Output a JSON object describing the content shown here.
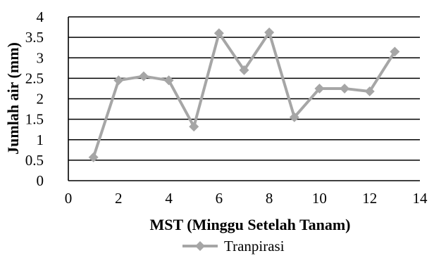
{
  "chart_data": {
    "type": "line",
    "title": "",
    "xlabel": "MST (Minggu Setelah Tanam)",
    "ylabel": "Jumlah air (mm)",
    "xlim": [
      0,
      14
    ],
    "ylim": [
      0,
      4
    ],
    "x_ticks": [
      0,
      2,
      4,
      6,
      8,
      10,
      12,
      14
    ],
    "x_tick_labels": [
      "0",
      "2",
      "4",
      "6",
      "8",
      "10",
      "12",
      "14"
    ],
    "y_ticks": [
      0,
      0.5,
      1,
      1.5,
      2,
      2.5,
      3,
      3.5,
      4
    ],
    "y_tick_labels": [
      "0",
      "0.5",
      "1",
      "1.5",
      "2",
      "2.5",
      "3",
      "3.5",
      "4"
    ],
    "grid": "horizontal",
    "legend": "bottom-center",
    "series": [
      {
        "name": "Tranpirasi",
        "color": "#a6a6a6",
        "marker": "diamond",
        "x": [
          1,
          2,
          3,
          4,
          5,
          6,
          7,
          8,
          9,
          10,
          11,
          12,
          13
        ],
        "y": [
          0.57,
          2.45,
          2.55,
          2.45,
          1.32,
          3.6,
          2.7,
          3.62,
          1.55,
          2.25,
          2.25,
          2.18,
          3.15
        ]
      }
    ]
  }
}
